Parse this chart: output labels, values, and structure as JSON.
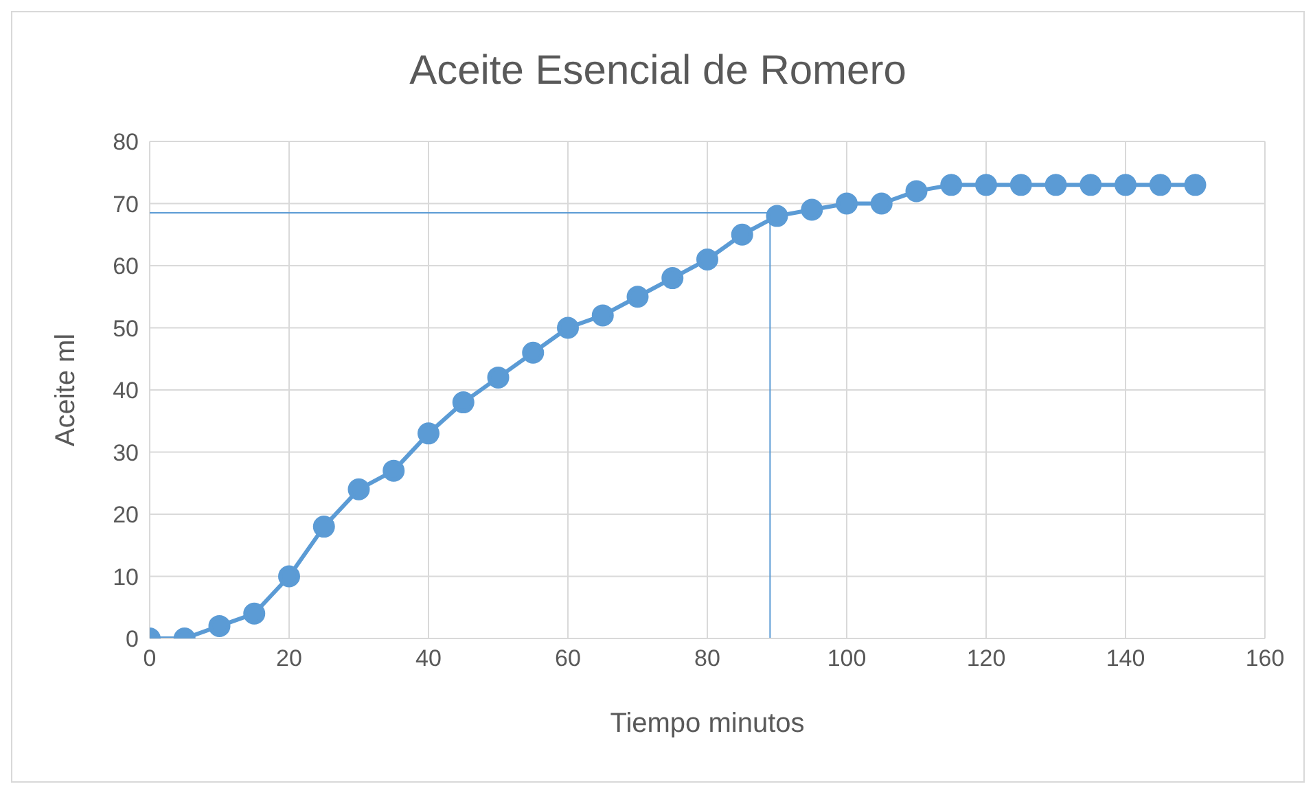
{
  "chart_data": {
    "type": "line",
    "title": "Aceite Esencial de Romero",
    "xlabel": "Tiempo minutos",
    "ylabel": "Aceite ml",
    "x": [
      0,
      5,
      10,
      15,
      20,
      25,
      30,
      35,
      40,
      45,
      50,
      55,
      60,
      65,
      70,
      75,
      80,
      85,
      90,
      95,
      100,
      105,
      110,
      115,
      120,
      125,
      130,
      135,
      140,
      145,
      150
    ],
    "series": [
      {
        "color": "#5b9bd5",
        "values": [
          0,
          0,
          2,
          4,
          10,
          18,
          24,
          27,
          33,
          38,
          42,
          46,
          50,
          52,
          55,
          58,
          61,
          65,
          68,
          69,
          70,
          70,
          72,
          73,
          73,
          73,
          73,
          73,
          73,
          73,
          73
        ]
      }
    ],
    "xlim": [
      0,
      160
    ],
    "xticks": [
      0,
      20,
      40,
      60,
      80,
      100,
      120,
      140,
      160
    ],
    "ylim": [
      0,
      80
    ],
    "yticks": [
      0,
      10,
      20,
      30,
      40,
      50,
      60,
      70,
      80
    ],
    "grid": true,
    "marker": "circle",
    "line_style": "solid",
    "ref_lines": [
      {
        "axis": "y",
        "value": 68.5,
        "color": "#5b9bd5"
      },
      {
        "axis": "x",
        "value": 89,
        "color": "#5b9bd5"
      }
    ]
  }
}
